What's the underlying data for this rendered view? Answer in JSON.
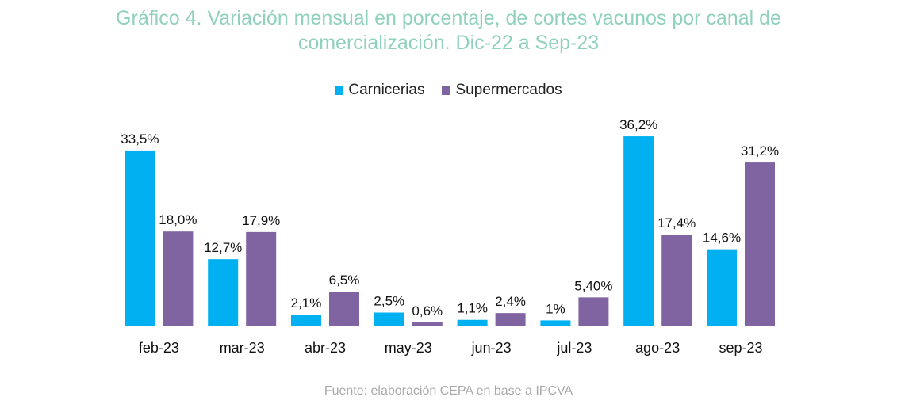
{
  "title_line1": "Gráfico 4. Variación mensual en porcentaje, de cortes vacunos por canal de",
  "title_line2": "comercialización. Dic-22 a Sep-23",
  "source": "Fuente: elaboración CEPA en base a IPCVA",
  "colors": {
    "carnicerias": "#00b0f0",
    "supermercados": "#8064a2",
    "title": "#8fd1bd"
  },
  "chart_data": {
    "type": "bar",
    "title": "Gráfico 4. Variación mensual en porcentaje, de cortes vacunos por canal de comercialización. Dic-22 a Sep-23",
    "xlabel": "",
    "ylabel": "",
    "ylim": [
      0,
      40
    ],
    "grid": false,
    "legend": "top-center",
    "categories": [
      "feb-23",
      "mar-23",
      "abr-23",
      "may-23",
      "jun-23",
      "jul-23",
      "ago-23",
      "sep-23"
    ],
    "series": [
      {
        "name": "Carnicerias",
        "values": [
          33.5,
          12.7,
          2.1,
          2.5,
          1.1,
          1.0,
          36.2,
          14.6
        ],
        "labels": [
          "33,5%",
          "12,7%",
          "2,1%",
          "2,5%",
          "1,1%",
          "1%",
          "36,2%",
          "14,6%"
        ]
      },
      {
        "name": "Supermercados",
        "values": [
          18.0,
          17.9,
          6.5,
          0.6,
          2.4,
          5.4,
          17.4,
          31.2
        ],
        "labels": [
          "18,0%",
          "17,9%",
          "6,5%",
          "0,6%",
          "2,4%",
          "5,40%",
          "17,4%",
          "31,2%"
        ]
      }
    ]
  }
}
